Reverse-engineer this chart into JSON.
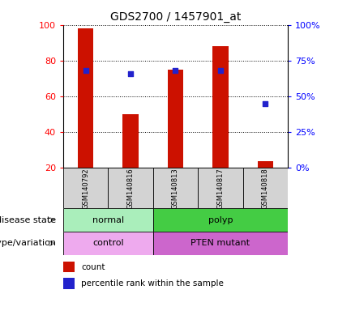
{
  "title": "GDS2700 / 1457901_at",
  "samples": [
    "GSM140792",
    "GSM140816",
    "GSM140813",
    "GSM140817",
    "GSM140818"
  ],
  "bar_values": [
    98,
    50,
    75,
    88,
    24
  ],
  "percentile_values": [
    68,
    66,
    68,
    68,
    45
  ],
  "ylim_left": [
    20,
    100
  ],
  "ylim_right": [
    0,
    100
  ],
  "yticks_left": [
    20,
    40,
    60,
    80,
    100
  ],
  "yticks_right": [
    0,
    25,
    50,
    75,
    100
  ],
  "bar_color": "#cc1100",
  "marker_color": "#2222cc",
  "grid_color": "black",
  "bg_color": "#ffffff",
  "plot_bg": "#ffffff",
  "disease_state": [
    {
      "label": "normal",
      "span": [
        0,
        2
      ],
      "color": "#aaeebb"
    },
    {
      "label": "polyp",
      "span": [
        2,
        5
      ],
      "color": "#44cc44"
    }
  ],
  "genotype": [
    {
      "label": "control",
      "span": [
        0,
        2
      ],
      "color": "#eeaaee"
    },
    {
      "label": "PTEN mutant",
      "span": [
        2,
        5
      ],
      "color": "#cc66cc"
    }
  ],
  "disease_row_label": "disease state",
  "genotype_row_label": "genotype/variation",
  "legend_count_label": "count",
  "legend_pct_label": "percentile rank within the sample",
  "title_fontsize": 10,
  "tick_fontsize": 8,
  "sample_fontsize": 6,
  "row_label_fontsize": 8,
  "row_cell_fontsize": 8,
  "legend_fontsize": 7.5,
  "bar_width": 0.35
}
